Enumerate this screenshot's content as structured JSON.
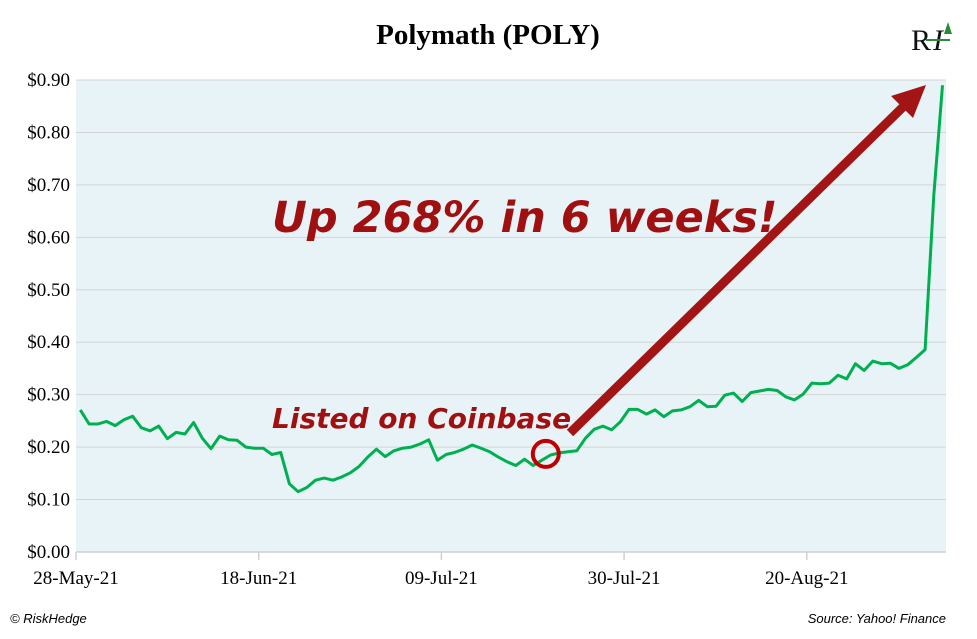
{
  "chart_data": {
    "type": "line",
    "title": "Polymath (POLY)",
    "xlabel": "",
    "ylabel": "",
    "ylim": [
      0,
      0.9
    ],
    "yticks": [
      "$0.00",
      "$0.10",
      "$0.20",
      "$0.30",
      "$0.40",
      "$0.50",
      "$0.60",
      "$0.70",
      "$0.80",
      "$0.90"
    ],
    "yticks_values": [
      0,
      0.1,
      0.2,
      0.3,
      0.4,
      0.5,
      0.6,
      0.7,
      0.8,
      0.9
    ],
    "xlim_days": [
      0,
      100
    ],
    "xticks": [
      {
        "label": "28-May-21",
        "day": 0
      },
      {
        "label": "18-Jun-21",
        "day": 21
      },
      {
        "label": "09-Jul-21",
        "day": 42
      },
      {
        "label": "30-Jul-21",
        "day": 63
      },
      {
        "label": "20-Aug-21",
        "day": 84
      }
    ],
    "grid": true,
    "series": [
      {
        "name": "POLY price (USD)",
        "color": "#00b050",
        "start_day": 0.5,
        "end_day": 99.6,
        "values": [
          0.271,
          0.244,
          0.244,
          0.249,
          0.241,
          0.252,
          0.259,
          0.237,
          0.231,
          0.24,
          0.216,
          0.228,
          0.225,
          0.247,
          0.217,
          0.197,
          0.221,
          0.214,
          0.213,
          0.2,
          0.198,
          0.198,
          0.186,
          0.19,
          0.13,
          0.115,
          0.123,
          0.137,
          0.141,
          0.137,
          0.143,
          0.151,
          0.163,
          0.181,
          0.196,
          0.182,
          0.193,
          0.198,
          0.2,
          0.206,
          0.214,
          0.175,
          0.186,
          0.19,
          0.196,
          0.204,
          0.198,
          0.191,
          0.181,
          0.172,
          0.165,
          0.177,
          0.165,
          0.175,
          0.185,
          0.189,
          0.191,
          0.193,
          0.217,
          0.234,
          0.24,
          0.233,
          0.248,
          0.272,
          0.272,
          0.263,
          0.271,
          0.258,
          0.269,
          0.271,
          0.277,
          0.289,
          0.277,
          0.278,
          0.299,
          0.303,
          0.287,
          0.304,
          0.307,
          0.31,
          0.308,
          0.296,
          0.29,
          0.301,
          0.322,
          0.321,
          0.322,
          0.337,
          0.33,
          0.359,
          0.346,
          0.364,
          0.359,
          0.36,
          0.35,
          0.357,
          0.371,
          0.386,
          0.68,
          0.89
        ]
      }
    ],
    "annotations": {
      "headline": "Up 268% in 6 weeks!",
      "marker_label": "Listed on Coinbase",
      "marker_day": 54
    },
    "colors": {
      "plot_bg": "#e8f3f8",
      "grid": "#d4d4d4",
      "annotation": "#a01010",
      "arrow": "#a31515",
      "circle": "#c00000"
    }
  },
  "logo": "RH",
  "footer": {
    "left": "© RiskHedge",
    "right": "Source: Yahoo! Finance"
  }
}
